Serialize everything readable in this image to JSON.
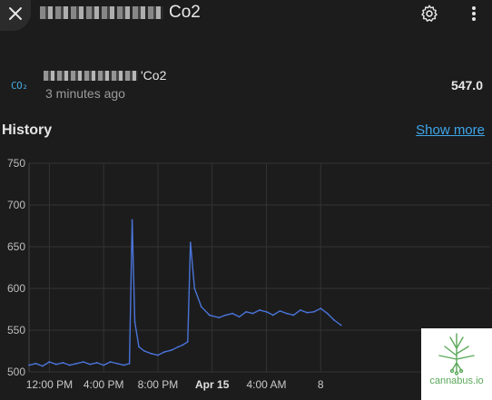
{
  "dialog": {
    "title": "Co2",
    "close_icon": "close-icon",
    "settings_icon": "gear-icon",
    "more_icon": "more-vert-icon"
  },
  "entity": {
    "icon_label": "CO₂",
    "name_suffix": "'Co2",
    "last_changed": "3 minutes ago",
    "value": "547.0"
  },
  "history": {
    "title": "History",
    "show_more": "Show more"
  },
  "colors": {
    "background": "#1c1c1c",
    "line": "#4a74d9",
    "link": "#3ea6ec",
    "icon_accent": "#44a7e0"
  },
  "chart_data": {
    "type": "line",
    "title": "",
    "xlabel": "",
    "ylabel": "",
    "ylim": [
      500,
      750
    ],
    "yticks": [
      500,
      550,
      600,
      650,
      700,
      750
    ],
    "xticks": [
      {
        "label": "12:00 PM",
        "bold": false
      },
      {
        "label": "4:00 PM",
        "bold": false
      },
      {
        "label": "8:00 PM",
        "bold": false
      },
      {
        "label": "Apr 15",
        "bold": true
      },
      {
        "label": "4:00 AM",
        "bold": false
      },
      {
        "label": "8",
        "bold": false
      }
    ],
    "x_hours_start": 10.5,
    "grid": true,
    "series": [
      {
        "values_x_hours": [
          10.5,
          11,
          11.5,
          12,
          12.5,
          13,
          13.5,
          14,
          14.5,
          15,
          15.5,
          16,
          16.5,
          17,
          17.5,
          17.9,
          18.1,
          18.3,
          18.6,
          19,
          19.5,
          20,
          20.5,
          21,
          21.5,
          21.8,
          22.2,
          22.4,
          22.7,
          23.2,
          23.8,
          24.5,
          25,
          25.5,
          26,
          26.5,
          27,
          27.5,
          28,
          28.5,
          29,
          29.5,
          30,
          30.5,
          31,
          31.5,
          32,
          32.5,
          33,
          33.5
        ],
        "values_y": [
          508,
          510,
          507,
          512,
          509,
          511,
          508,
          510,
          512,
          509,
          511,
          508,
          512,
          510,
          508,
          510,
          682,
          560,
          530,
          525,
          522,
          520,
          524,
          526,
          530,
          532,
          536,
          655,
          600,
          578,
          568,
          565,
          568,
          570,
          566,
          572,
          570,
          574,
          572,
          568,
          573,
          570,
          568,
          574,
          571,
          572,
          576,
          570,
          562,
          556
        ]
      }
    ]
  },
  "watermark": {
    "text": "cannabus.io"
  }
}
